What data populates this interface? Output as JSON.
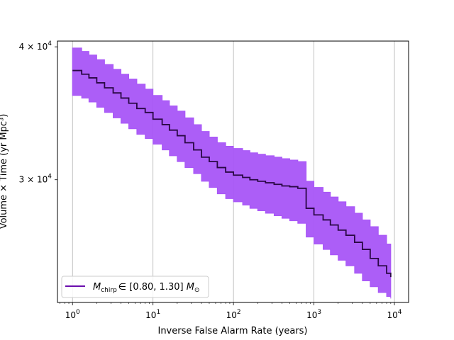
{
  "chart_data": {
    "type": "line",
    "title": "",
    "xlabel": "Inverse False Alarm Rate (years)",
    "ylabel": "Volume × Time (yr Mpc³)",
    "xscale": "log",
    "yscale": "log",
    "xlim": [
      0.65,
      15000
    ],
    "ylim": [
      23000,
      40500
    ],
    "grid": "vertical-major",
    "legend_position": "lower-left",
    "x_ticks": [
      {
        "value": 1,
        "base": "10",
        "exp": "0"
      },
      {
        "value": 10,
        "base": "10",
        "exp": "1"
      },
      {
        "value": 100,
        "base": "10",
        "exp": "2"
      },
      {
        "value": 1000,
        "base": "10",
        "exp": "3"
      },
      {
        "value": 10000,
        "base": "10",
        "exp": "4"
      }
    ],
    "y_ticks": [
      {
        "value": 30000,
        "mant": "3 × 10",
        "exp": "4"
      },
      {
        "value": 40000,
        "mant": "4 × 10",
        "exp": "4"
      }
    ],
    "series": [
      {
        "name": "M_chirp ∈ [0.80, 1.30] M☉",
        "legend_label": {
          "sym": "M",
          "sub": "chirp",
          "range": "∈ [0.80, 1.30]",
          "unit": "M",
          "unit_sub": "⊙"
        },
        "color": "#6a0dad",
        "line_color": "#2a0845",
        "band_color": "#a855f7",
        "x": [
          1,
          1.3,
          1.6,
          2,
          2.5,
          3.2,
          4,
          5,
          6.3,
          8,
          10,
          13,
          16,
          20,
          25,
          32,
          40,
          50,
          63,
          80,
          100,
          130,
          160,
          200,
          250,
          320,
          400,
          500,
          630,
          800,
          1000,
          1300,
          1600,
          2000,
          2500,
          3200,
          4000,
          5000,
          6300,
          8000,
          9000
        ],
        "y": [
          38000,
          37700,
          37400,
          37000,
          36600,
          36200,
          35800,
          35400,
          35000,
          34700,
          34200,
          33800,
          33400,
          33000,
          32500,
          32000,
          31500,
          31200,
          30800,
          30500,
          30300,
          30150,
          30000,
          29900,
          29800,
          29700,
          29600,
          29550,
          29450,
          28200,
          27800,
          27500,
          27200,
          26900,
          26600,
          26200,
          25800,
          25300,
          24900,
          24500,
          24300
        ],
        "lower": [
          36000,
          35800,
          35500,
          35100,
          34700,
          34300,
          33900,
          33500,
          33100,
          32800,
          32400,
          32000,
          31600,
          31200,
          30800,
          30400,
          29900,
          29500,
          29100,
          28800,
          28600,
          28400,
          28200,
          28050,
          27900,
          27750,
          27600,
          27450,
          27300,
          26500,
          26100,
          25800,
          25500,
          25200,
          24900,
          24500,
          24100,
          23800,
          23500,
          23300,
          23200
        ],
        "upper": [
          39900,
          39600,
          39300,
          38900,
          38500,
          38100,
          37700,
          37300,
          36900,
          36500,
          36000,
          35600,
          35200,
          34800,
          34300,
          33800,
          33300,
          32900,
          32500,
          32250,
          32100,
          31950,
          31800,
          31700,
          31600,
          31500,
          31400,
          31300,
          31200,
          29900,
          29500,
          29200,
          28900,
          28600,
          28300,
          27900,
          27500,
          27100,
          26600,
          26100,
          25900
        ]
      }
    ]
  }
}
